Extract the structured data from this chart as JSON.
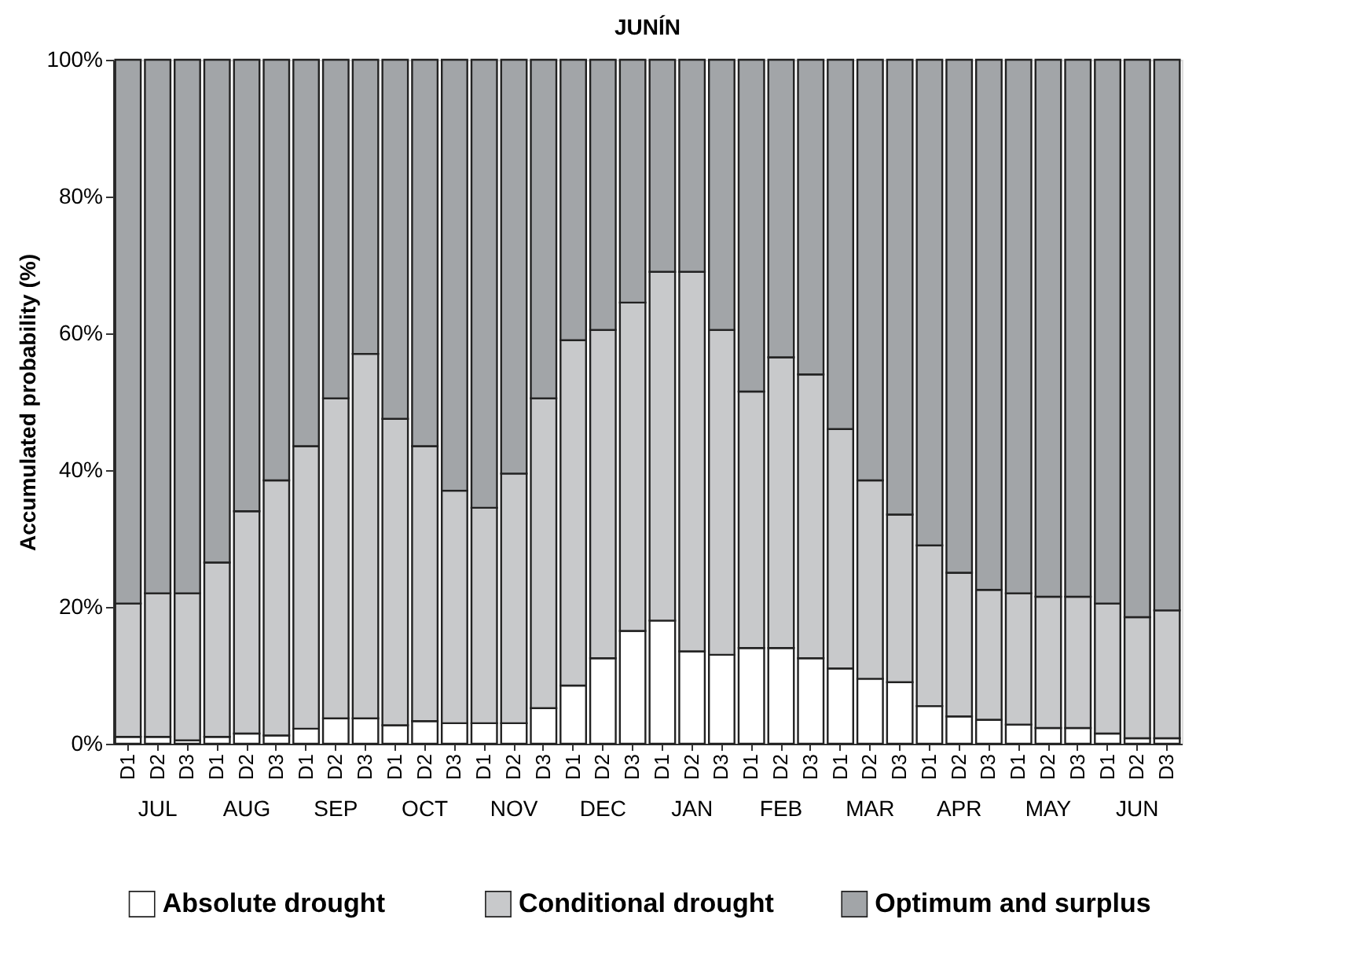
{
  "chart_data": {
    "type": "bar",
    "title": "JUNÍN",
    "ylabel": "Accumulated probability (%)",
    "stacked": true,
    "categories": [
      "D1",
      "D2",
      "D3",
      "D1",
      "D2",
      "D3",
      "D1",
      "D2",
      "D3",
      "D1",
      "D2",
      "D3",
      "D1",
      "D2",
      "D3",
      "D1",
      "D2",
      "D3",
      "D1",
      "D2",
      "D3",
      "D1",
      "D2",
      "D3",
      "D1",
      "D2",
      "D3",
      "D1",
      "D2",
      "D3",
      "D1",
      "D2",
      "D3",
      "D1",
      "D2",
      "D3"
    ],
    "annotations": [
      "JUL",
      "AUG",
      "SEP",
      "OCT",
      "NOV",
      "DEC",
      "JAN",
      "FEB",
      "MAR",
      "APR",
      "MAY",
      "JUN"
    ],
    "series": [
      {
        "name": "Absolute drought",
        "color": "#ffffff",
        "values": [
          1,
          1,
          0.5,
          1,
          1.5,
          1.2,
          2.2,
          3.7,
          3.7,
          2.7,
          3.3,
          3,
          3,
          3,
          5.2,
          8.5,
          12.5,
          16.5,
          18,
          13.5,
          13,
          14,
          14,
          12.5,
          11,
          9.5,
          9,
          5.5,
          4,
          3.5,
          2.8,
          2.3,
          2.3,
          1.5,
          0.8,
          0.8
        ]
      },
      {
        "name": "Conditional drought",
        "color": "#c8c9cb",
        "values": [
          19.5,
          21,
          21.5,
          25.5,
          32.5,
          37.3,
          41.3,
          46.8,
          53.3,
          44.8,
          40.2,
          34,
          31.5,
          36.5,
          45.3,
          50.5,
          48,
          48,
          51,
          55.5,
          47.5,
          37.5,
          42.5,
          41.5,
          35,
          29,
          24.5,
          23.5,
          21,
          19,
          19.2,
          19.2,
          19.2,
          19,
          17.7,
          18.7
        ]
      },
      {
        "name": "Optimum and surplus",
        "color": "#a2a5a8",
        "values": [
          79.5,
          78,
          78,
          73.5,
          66,
          61.5,
          56.5,
          49.5,
          43,
          52.5,
          56.5,
          63,
          65.5,
          60.5,
          49.5,
          41,
          39.5,
          35.5,
          31,
          31,
          39.5,
          48.5,
          43.5,
          46,
          54,
          61.5,
          66.5,
          71,
          75,
          77.5,
          78,
          78.5,
          78.5,
          79.5,
          81.5,
          80.5
        ]
      }
    ],
    "ylim": [
      0,
      100
    ],
    "yticks": [
      {
        "value": 0,
        "label": "0%"
      },
      {
        "value": 20,
        "label": "20%"
      },
      {
        "value": 40,
        "label": "40%"
      },
      {
        "value": 60,
        "label": "60%"
      },
      {
        "value": 80,
        "label": "80%"
      },
      {
        "value": 100,
        "label": "100%"
      }
    ],
    "grid": false,
    "legend": "bottom"
  }
}
